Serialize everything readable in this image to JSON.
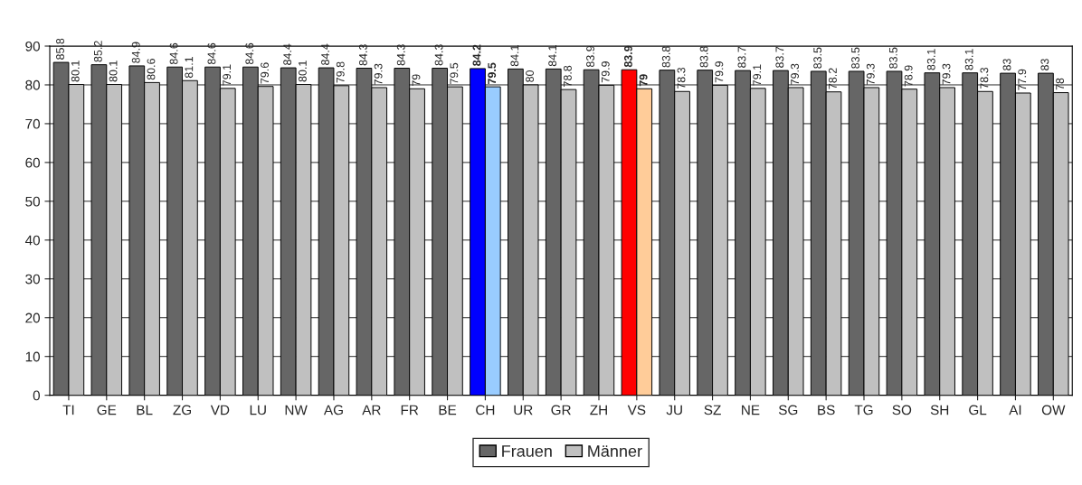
{
  "chart_data": {
    "type": "bar",
    "categories": [
      "TI",
      "GE",
      "BL",
      "ZG",
      "VD",
      "LU",
      "NW",
      "AG",
      "AR",
      "FR",
      "BE",
      "CH",
      "UR",
      "GR",
      "ZH",
      "VS",
      "JU",
      "SZ",
      "NE",
      "SG",
      "BS",
      "TG",
      "SO",
      "SH",
      "GL",
      "AI",
      "OW"
    ],
    "series": [
      {
        "name": "Frauen",
        "color": "#666666",
        "colors": [
          "#666666",
          "#666666",
          "#666666",
          "#666666",
          "#666666",
          "#666666",
          "#666666",
          "#666666",
          "#666666",
          "#666666",
          "#666666",
          "#0000ff",
          "#666666",
          "#666666",
          "#666666",
          "#ff0000",
          "#666666",
          "#666666",
          "#666666",
          "#666666",
          "#666666",
          "#666666",
          "#666666",
          "#666666",
          "#666666",
          "#666666",
          "#666666"
        ],
        "values": [
          85.8,
          85.2,
          84.9,
          84.6,
          84.6,
          84.6,
          84.4,
          84.4,
          84.3,
          84.3,
          84.3,
          84.2,
          84.1,
          84.1,
          83.9,
          83.9,
          83.8,
          83.8,
          83.7,
          83.7,
          83.5,
          83.5,
          83.5,
          83.1,
          83.1,
          83,
          83
        ]
      },
      {
        "name": "Männer",
        "color": "#c0c0c0",
        "colors": [
          "#c0c0c0",
          "#c0c0c0",
          "#c0c0c0",
          "#c0c0c0",
          "#c0c0c0",
          "#c0c0c0",
          "#c0c0c0",
          "#c0c0c0",
          "#c0c0c0",
          "#c0c0c0",
          "#c0c0c0",
          "#99ccff",
          "#c0c0c0",
          "#c0c0c0",
          "#c0c0c0",
          "#ffcc99",
          "#c0c0c0",
          "#c0c0c0",
          "#c0c0c0",
          "#c0c0c0",
          "#c0c0c0",
          "#c0c0c0",
          "#c0c0c0",
          "#c0c0c0",
          "#c0c0c0",
          "#c0c0c0",
          "#c0c0c0"
        ],
        "values": [
          80.1,
          80.1,
          80.6,
          81.1,
          79.1,
          79.6,
          80.1,
          79.8,
          79.3,
          79,
          79.5,
          79.5,
          80,
          78.8,
          79.9,
          79,
          78.3,
          79.9,
          79.1,
          79.3,
          78.2,
          79.3,
          78.9,
          79.3,
          78.3,
          77.9,
          78
        ]
      }
    ],
    "ylim": [
      0,
      90
    ],
    "yticks": [
      0,
      10,
      20,
      30,
      40,
      50,
      60,
      70,
      80,
      90
    ],
    "grid": "y",
    "legend": "bottom",
    "data_labels": true
  }
}
